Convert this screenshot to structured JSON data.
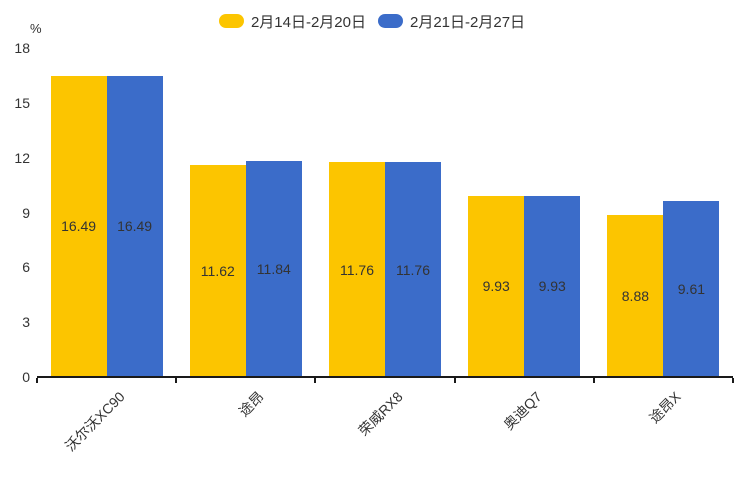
{
  "legend": {
    "items": [
      {
        "label": "2月14日-2月20日",
        "color": "#FCC500"
      },
      {
        "label": "2月21日-2月27日",
        "color": "#3B6CC9"
      }
    ]
  },
  "chart_data": {
    "type": "bar",
    "title": "",
    "unit_label": "%",
    "categories": [
      "沃尔沃XC90",
      "途昂",
      "荣威RX8",
      "奥迪Q7",
      "途昂X"
    ],
    "series": [
      {
        "name": "2月14日-2月20日",
        "color": "#FCC500",
        "values": [
          16.49,
          11.62,
          11.76,
          9.93,
          8.88
        ]
      },
      {
        "name": "2月21日-2月27日",
        "color": "#3B6CC9",
        "values": [
          16.49,
          11.84,
          11.76,
          9.93,
          9.61
        ]
      }
    ],
    "ylim": [
      0,
      18
    ],
    "yticks": [
      0,
      3,
      6,
      9,
      12,
      15,
      18
    ],
    "grid": false,
    "legend_position": "top",
    "value_labels": "inside-center",
    "value_label_color": "#333333",
    "axis_color": "#1a1a1a"
  }
}
